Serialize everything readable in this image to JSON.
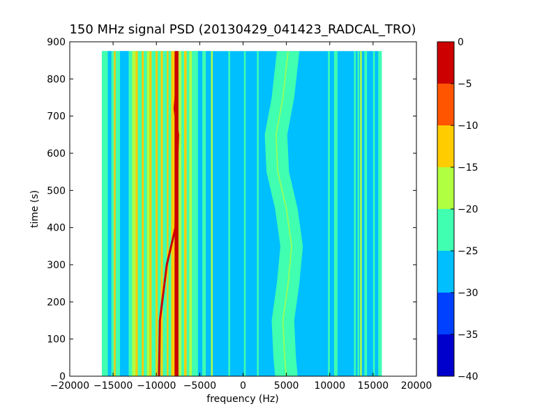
{
  "chart_data": {
    "type": "heatmap",
    "title": "150 MHz signal PSD (20130429_041423_RADCAL_TRO)",
    "xlabel": "frequency (Hz)",
    "ylabel": "time (s)",
    "xlim": [
      -20000,
      20000
    ],
    "ylim": [
      0,
      900
    ],
    "x_ticks": [
      -20000,
      -15000,
      -10000,
      -5000,
      0,
      5000,
      10000,
      15000,
      20000
    ],
    "x_tick_labels": [
      "−20000",
      "−15000",
      "−10000",
      "−5000",
      "0",
      "5000",
      "10000",
      "15000",
      "20000"
    ],
    "y_ticks": [
      0,
      100,
      200,
      300,
      400,
      500,
      600,
      700,
      800,
      900
    ],
    "y_tick_labels": [
      "0",
      "100",
      "200",
      "300",
      "400",
      "500",
      "600",
      "700",
      "800",
      "900"
    ],
    "data_extent": {
      "x": [
        -16300,
        16000
      ],
      "y": [
        0,
        875
      ]
    },
    "grid": false,
    "colorbar": {
      "levels": [
        -40,
        -35,
        -30,
        -25,
        -20,
        -15,
        -10,
        -5,
        0
      ],
      "tick_labels": [
        "−40",
        "−35",
        "−30",
        "−25",
        "−20",
        "−15",
        "−10",
        "−5",
        "0"
      ],
      "colors": [
        "#0000cc",
        "#0040ff",
        "#00bfff",
        "#40ffb0",
        "#b0ff40",
        "#ffcc00",
        "#ff5500",
        "#cc0000"
      ]
    },
    "background_level": -27.5,
    "bands": [
      {
        "x0": -16300,
        "x1": -15600,
        "level": -22.5
      },
      {
        "x0": -15600,
        "x1": -15200,
        "level": -27.5
      },
      {
        "x0": -15200,
        "x1": -14900,
        "level": -22.5
      },
      {
        "x0": -14900,
        "x1": -14700,
        "level": -12.5
      },
      {
        "x0": -14700,
        "x1": -14200,
        "level": -22.5
      },
      {
        "x0": -14200,
        "x1": -13200,
        "level": -27.5
      },
      {
        "x0": -13200,
        "x1": -12800,
        "level": -22.5
      },
      {
        "x0": -12800,
        "x1": -12400,
        "level": -17.5
      },
      {
        "x0": -12400,
        "x1": -12150,
        "level": -12.5
      },
      {
        "x0": -12150,
        "x1": -11700,
        "level": -22.5
      },
      {
        "x0": -11700,
        "x1": -11450,
        "level": -12.5
      },
      {
        "x0": -11450,
        "x1": -11100,
        "level": -22.5
      },
      {
        "x0": -11100,
        "x1": -10800,
        "level": -17.5
      },
      {
        "x0": -10800,
        "x1": -10550,
        "level": -12.5
      },
      {
        "x0": -10550,
        "x1": -10100,
        "level": -22.5
      },
      {
        "x0": -10100,
        "x1": -9850,
        "level": -12.5
      },
      {
        "x0": -9850,
        "x1": -9500,
        "level": -22.5
      },
      {
        "x0": -9500,
        "x1": -9250,
        "level": -12.5
      },
      {
        "x0": -9250,
        "x1": -8800,
        "level": -22.5
      },
      {
        "x0": -8800,
        "x1": -8600,
        "level": -12.5
      },
      {
        "x0": -8600,
        "x1": -8300,
        "level": -22.5
      },
      {
        "x0": -8300,
        "x1": -7900,
        "level": -12.5
      },
      {
        "x0": -7900,
        "x1": -7450,
        "level": -2.5
      },
      {
        "x0": -7450,
        "x1": -7100,
        "level": -17.5
      },
      {
        "x0": -7100,
        "x1": -6800,
        "level": -22.5
      },
      {
        "x0": -6800,
        "x1": -6500,
        "level": -12.5
      },
      {
        "x0": -6500,
        "x1": -6200,
        "level": -22.5
      },
      {
        "x0": -6200,
        "x1": -5900,
        "level": -17.5
      },
      {
        "x0": -5900,
        "x1": -5200,
        "level": -22.5
      },
      {
        "x0": -5200,
        "x1": -4700,
        "level": -27.5
      },
      {
        "x0": -4700,
        "x1": -4300,
        "level": -22.5
      },
      {
        "x0": -4300,
        "x1": -3700,
        "level": -27.5
      },
      {
        "x0": -3700,
        "x1": -3500,
        "level": -17.5
      },
      {
        "x0": -1700,
        "x1": -1500,
        "level": -22.5
      },
      {
        "x0": 100,
        "x1": 300,
        "level": -22.5
      },
      {
        "x0": 1600,
        "x1": 1800,
        "level": -22.5
      },
      {
        "x0": 9800,
        "x1": 10000,
        "level": -22.5
      },
      {
        "x0": 10500,
        "x1": 10900,
        "level": -22.5
      },
      {
        "x0": 12800,
        "x1": 13000,
        "level": -22.5
      },
      {
        "x0": 13200,
        "x1": 13400,
        "level": -22.5
      },
      {
        "x0": 13500,
        "x1": 13700,
        "level": -17.5
      },
      {
        "x0": 14000,
        "x1": 14300,
        "level": -22.5
      },
      {
        "x0": 15000,
        "x1": 15200,
        "level": -22.5
      },
      {
        "x0": 15600,
        "x1": 16000,
        "level": -22.5
      }
    ],
    "wandering_band": {
      "level": -22.5,
      "half_width": 1300,
      "center": [
        {
          "t": 0,
          "f": 5000
        },
        {
          "t": 50,
          "f": 4800
        },
        {
          "t": 150,
          "f": 4600
        },
        {
          "t": 250,
          "f": 5200
        },
        {
          "t": 350,
          "f": 5600
        },
        {
          "t": 450,
          "f": 5000
        },
        {
          "t": 550,
          "f": 4000
        },
        {
          "t": 650,
          "f": 3800
        },
        {
          "t": 750,
          "f": 4600
        },
        {
          "t": 875,
          "f": 5200
        }
      ]
    },
    "bright_trace": {
      "level": -2.5,
      "points": [
        {
          "t": 0,
          "f": -9700
        },
        {
          "t": 150,
          "f": -9600
        },
        {
          "t": 300,
          "f": -8800
        },
        {
          "t": 400,
          "f": -7800
        },
        {
          "t": 500,
          "f": -7700
        },
        {
          "t": 650,
          "f": -7500
        },
        {
          "t": 720,
          "f": -7900
        },
        {
          "t": 800,
          "f": -7600
        },
        {
          "t": 875,
          "f": -7700
        }
      ]
    }
  }
}
